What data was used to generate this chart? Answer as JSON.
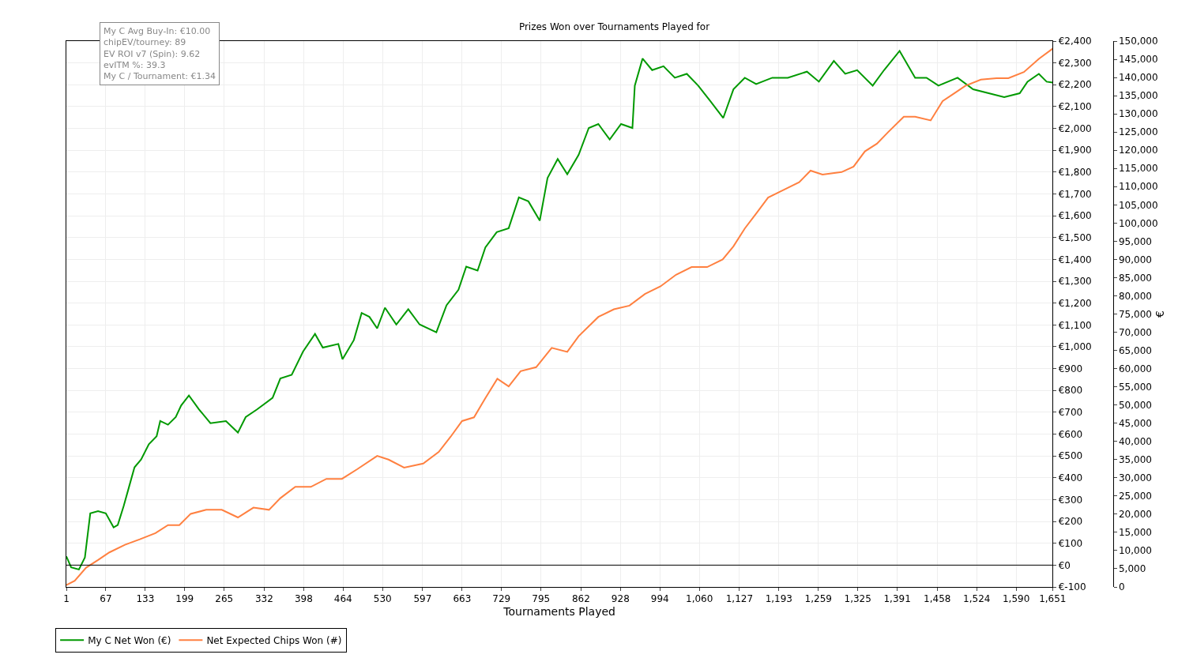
{
  "chart_data": {
    "type": "line",
    "title": "Prizes Won over Tournaments Played for",
    "xlabel": "Tournaments Played",
    "y2label": "€",
    "annotations": [
      "My C Avg Buy-In: €10.00",
      "chipEV/tourney: 89",
      "EV ROI v7 (Spin): 9.62",
      "evITM %: 39.3",
      "My C / Tournament: €1.34"
    ],
    "xlim": [
      1,
      1651
    ],
    "xticks": [
      1,
      67,
      133,
      199,
      265,
      332,
      398,
      464,
      530,
      597,
      663,
      729,
      795,
      862,
      928,
      994,
      {
        "value": 1060,
        "label": "1,060"
      },
      {
        "value": 1127,
        "label": "1,127"
      },
      {
        "value": 1193,
        "label": "1,193"
      },
      {
        "value": 1259,
        "label": "1,259"
      },
      {
        "value": 1325,
        "label": "1,325"
      },
      {
        "value": 1391,
        "label": "1,391"
      },
      {
        "value": 1458,
        "label": "1,458"
      },
      {
        "value": 1524,
        "label": "1,524"
      },
      {
        "value": 1590,
        "label": "1,590"
      },
      {
        "value": 1651,
        "label": "1,651"
      }
    ],
    "ylim": [
      -100,
      2400
    ],
    "yticks": [
      {
        "value": -100,
        "label": "€-100"
      },
      {
        "value": 0,
        "label": "€0"
      },
      {
        "value": 100,
        "label": "€100"
      },
      {
        "value": 200,
        "label": "€200"
      },
      {
        "value": 300,
        "label": "€300"
      },
      {
        "value": 400,
        "label": "€400"
      },
      {
        "value": 500,
        "label": "€500"
      },
      {
        "value": 600,
        "label": "€600"
      },
      {
        "value": 700,
        "label": "€700"
      },
      {
        "value": 800,
        "label": "€800"
      },
      {
        "value": 900,
        "label": "€900"
      },
      {
        "value": 1000,
        "label": "€1,000"
      },
      {
        "value": 1100,
        "label": "€1,100"
      },
      {
        "value": 1200,
        "label": "€1,200"
      },
      {
        "value": 1300,
        "label": "€1,300"
      },
      {
        "value": 1400,
        "label": "€1,400"
      },
      {
        "value": 1500,
        "label": "€1,500"
      },
      {
        "value": 1600,
        "label": "€1,600"
      },
      {
        "value": 1700,
        "label": "€1,700"
      },
      {
        "value": 1800,
        "label": "€1,800"
      },
      {
        "value": 1900,
        "label": "€1,900"
      },
      {
        "value": 2000,
        "label": "€2,000"
      },
      {
        "value": 2100,
        "label": "€2,100"
      },
      {
        "value": 2200,
        "label": "€2,200"
      },
      {
        "value": 2300,
        "label": "€2,300"
      },
      {
        "value": 2400,
        "label": "€2,400"
      }
    ],
    "y2lim": [
      0,
      150000
    ],
    "y2ticks": [
      0,
      {
        "value": 5000,
        "label": "5,000"
      },
      {
        "value": 10000,
        "label": "10,000"
      },
      {
        "value": 15000,
        "label": "15,000"
      },
      {
        "value": 20000,
        "label": "20,000"
      },
      {
        "value": 25000,
        "label": "25,000"
      },
      {
        "value": 30000,
        "label": "30,000"
      },
      {
        "value": 35000,
        "label": "35,000"
      },
      {
        "value": 40000,
        "label": "40,000"
      },
      {
        "value": 45000,
        "label": "45,000"
      },
      {
        "value": 50000,
        "label": "50,000"
      },
      {
        "value": 55000,
        "label": "55,000"
      },
      {
        "value": 60000,
        "label": "60,000"
      },
      {
        "value": 65000,
        "label": "65,000"
      },
      {
        "value": 70000,
        "label": "70,000"
      },
      {
        "value": 75000,
        "label": "75,000"
      },
      {
        "value": 80000,
        "label": "80,000"
      },
      {
        "value": 85000,
        "label": "85,000"
      },
      {
        "value": 90000,
        "label": "90,000"
      },
      {
        "value": 95000,
        "label": "95,000"
      },
      {
        "value": 100000,
        "label": "100,000"
      },
      {
        "value": 105000,
        "label": "105,000"
      },
      {
        "value": 110000,
        "label": "110,000"
      },
      {
        "value": 115000,
        "label": "115,000"
      },
      {
        "value": 120000,
        "label": "120,000"
      },
      {
        "value": 125000,
        "label": "125,000"
      },
      {
        "value": 130000,
        "label": "130,000"
      },
      {
        "value": 135000,
        "label": "135,000"
      },
      {
        "value": 140000,
        "label": "140,000"
      },
      {
        "value": 145000,
        "label": "145,000"
      },
      {
        "value": 150000,
        "label": "150,000"
      }
    ],
    "ref_lines": [
      {
        "axis": "y",
        "value": 0,
        "color": "#000000"
      }
    ],
    "grid": true,
    "legend": "bottom left",
    "marker": "none",
    "line_style": "solid",
    "series": [
      {
        "name": "My C Net Won (€)",
        "color": "#009900",
        "x": [
          1,
          9,
          22,
          32,
          41,
          54,
          67,
          80,
          87,
          97,
          106,
          115,
          126,
          139,
          152,
          158,
          171,
          184,
          193,
          206,
          223,
          242,
          268,
          288,
          301,
          320,
          346,
          359,
          378,
          397,
          417,
          430,
          456,
          463,
          482,
          495,
          508,
          521,
          534,
          553,
          573,
          592,
          620,
          637,
          657,
          670,
          689,
          702,
          721,
          741,
          758,
          774,
          793,
          806,
          823,
          839,
          858,
          875,
          891,
          910,
          929,
          948,
          952,
          965,
          981,
          1000,
          1019,
          1039,
          1058,
          1078,
          1100,
          1117,
          1136,
          1155,
          1182,
          1208,
          1240,
          1260,
          1285,
          1304,
          1324,
          1350,
          1369,
          1395,
          1421,
          1440,
          1460,
          1492,
          1518,
          1544,
          1570,
          1596,
          1609,
          1628,
          1641,
          1651
        ],
        "values": [
          40,
          -10,
          -20,
          35,
          237,
          247,
          237,
          173,
          184,
          272,
          360,
          448,
          484,
          554,
          590,
          660,
          643,
          678,
          731,
          777,
          713,
          650,
          660,
          607,
          678,
          713,
          766,
          855,
          872,
          978,
          1059,
          996,
          1013,
          943,
          1031,
          1155,
          1137,
          1084,
          1179,
          1102,
          1172,
          1102,
          1066,
          1190,
          1261,
          1367,
          1349,
          1455,
          1525,
          1543,
          1684,
          1666,
          1578,
          1773,
          1860,
          1790,
          1879,
          2002,
          2020,
          1949,
          2020,
          2002,
          2196,
          2320,
          2267,
          2285,
          2232,
          2250,
          2196,
          2126,
          2048,
          2179,
          2232,
          2203,
          2232,
          2232,
          2260,
          2214,
          2309,
          2250,
          2267,
          2196,
          2267,
          2355,
          2232,
          2232,
          2196,
          2232,
          2179,
          2161,
          2143,
          2161,
          2214,
          2250,
          2214,
          2210
        ]
      },
      {
        "name": "Net Expected Chips Won (#)",
        "color": "#ff8040",
        "axis": "y2",
        "x": [
          1,
          15,
          34,
          54,
          73,
          99,
          124,
          150,
          171,
          190,
          209,
          235,
          261,
          288,
          314,
          340,
          359,
          384,
          410,
          436,
          462,
          488,
          521,
          540,
          566,
          598,
          624,
          644,
          663,
          683,
          702,
          722,
          741,
          761,
          787,
          813,
          839,
          858,
          891,
          917,
          943,
          969,
          995,
          1021,
          1047,
          1073,
          1099,
          1117,
          1136,
          1156,
          1175,
          1201,
          1227,
          1246,
          1266,
          1298,
          1318,
          1337,
          1357,
          1376,
          1402,
          1421,
          1447,
          1467,
          1486,
          1505,
          1531,
          1557,
          1577,
          1603,
          1628,
          1651
        ],
        "values": [
          500,
          1700,
          5300,
          7400,
          9500,
          11600,
          13100,
          14800,
          17000,
          17000,
          20100,
          21200,
          21200,
          19100,
          21800,
          21200,
          24400,
          27500,
          27500,
          29700,
          29700,
          32400,
          36000,
          35000,
          32800,
          33900,
          37100,
          41300,
          45600,
          46600,
          51900,
          57200,
          55100,
          59300,
          60400,
          65700,
          64600,
          68900,
          74200,
          76300,
          77300,
          80500,
          82600,
          85800,
          87900,
          87900,
          90000,
          93600,
          98500,
          102800,
          107000,
          109100,
          111200,
          114400,
          113300,
          114000,
          115500,
          119700,
          121800,
          125000,
          129200,
          129200,
          128200,
          133500,
          135600,
          137700,
          139400,
          139800,
          139800,
          141500,
          145100,
          147900
        ]
      }
    ]
  }
}
